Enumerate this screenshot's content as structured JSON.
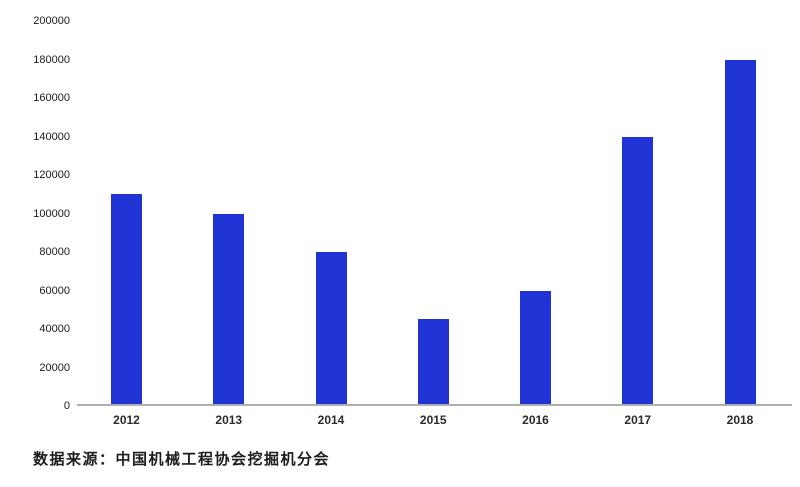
{
  "chart_data": {
    "type": "bar",
    "title": "",
    "xlabel": "",
    "ylabel": "",
    "categories": [
      "2012",
      "2013",
      "2014",
      "2015",
      "2016",
      "2017",
      "2018"
    ],
    "values": [
      110000,
      100000,
      80000,
      45000,
      60000,
      140000,
      180000
    ],
    "ylim": [
      0,
      200000
    ],
    "ytick_step": 20000,
    "ytick_labels": [
      "0",
      "20000",
      "40000",
      "60000",
      "80000",
      "100000",
      "120000",
      "140000",
      "160000",
      "180000",
      "200000"
    ],
    "grid": false,
    "legend_position": "none",
    "bar_color": "#2034d6",
    "axis_line_color": "#b0b0b0",
    "tick_label_color": "#1a1a1a"
  },
  "footer": {
    "source_text": "数据来源：中国机械工程协会挖掘机分会"
  }
}
